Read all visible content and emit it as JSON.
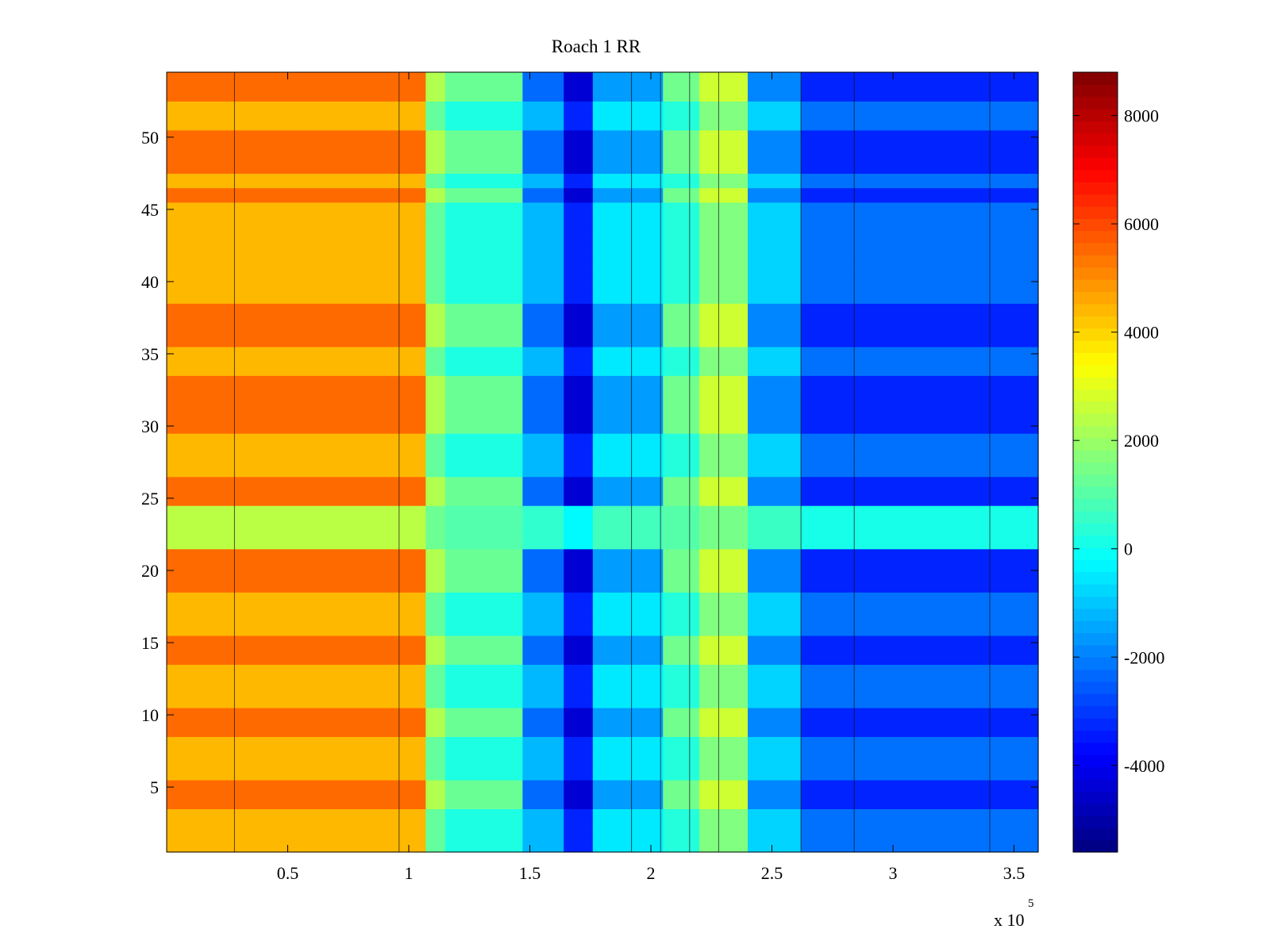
{
  "chart_data": {
    "type": "heatmap",
    "title": "Roach 1 RR",
    "xlabel": "",
    "ylabel": "",
    "x_exponent_label": "x 10",
    "x_exponent": "5",
    "xlim": [
      0,
      3.6
    ],
    "ylim": [
      0.5,
      54.5
    ],
    "x_ticks": [
      {
        "value": 0.5,
        "label": "0.5"
      },
      {
        "value": 1,
        "label": "1"
      },
      {
        "value": 1.5,
        "label": "1.5"
      },
      {
        "value": 2,
        "label": "2"
      },
      {
        "value": 2.5,
        "label": "2.5"
      },
      {
        "value": 3,
        "label": "3"
      },
      {
        "value": 3.5,
        "label": "3.5"
      }
    ],
    "y_ticks": [
      {
        "value": 5,
        "label": "5"
      },
      {
        "value": 10,
        "label": "10"
      },
      {
        "value": 15,
        "label": "15"
      },
      {
        "value": 20,
        "label": "20"
      },
      {
        "value": 25,
        "label": "25"
      },
      {
        "value": 30,
        "label": "30"
      },
      {
        "value": 35,
        "label": "35"
      },
      {
        "value": 40,
        "label": "40"
      },
      {
        "value": 45,
        "label": "45"
      },
      {
        "value": 50,
        "label": "50"
      }
    ],
    "colorbar": {
      "colormap": "jet",
      "clim": [
        -5600,
        8800
      ],
      "ticks": [
        {
          "value": 8000,
          "label": "8000"
        },
        {
          "value": 6000,
          "label": "6000"
        },
        {
          "value": 4000,
          "label": "4000"
        },
        {
          "value": 2000,
          "label": "2000"
        },
        {
          "value": 0,
          "label": "0"
        },
        {
          "value": -2000,
          "label": "-2000"
        },
        {
          "value": -4000,
          "label": "-4000"
        }
      ]
    },
    "rows": 54,
    "x_segments": [
      {
        "x0": 0,
        "x1": 1.07,
        "value": 4400
      },
      {
        "x0": 1.07,
        "x1": 1.15,
        "value": 1200
      },
      {
        "x0": 1.15,
        "x1": 1.47,
        "value": 200
      },
      {
        "x0": 1.47,
        "x1": 1.64,
        "value": -1200
      },
      {
        "x0": 1.64,
        "x1": 1.76,
        "value": -3300
      },
      {
        "x0": 1.76,
        "x1": 2.05,
        "value": -500
      },
      {
        "x0": 2.05,
        "x1": 2.2,
        "value": 300
      },
      {
        "x0": 2.2,
        "x1": 2.4,
        "value": 1600
      },
      {
        "x0": 2.4,
        "x1": 2.62,
        "value": -800
      },
      {
        "x0": 2.62,
        "x1": 3.6,
        "value": -2200
      }
    ],
    "dark_row_bands": [
      [
        3,
        5
      ],
      [
        8,
        10
      ],
      [
        13,
        15
      ],
      [
        18,
        21
      ],
      [
        24,
        26
      ],
      [
        29,
        33
      ],
      [
        35,
        38
      ],
      [
        45,
        46
      ],
      [
        47,
        50
      ],
      [
        52,
        54
      ]
    ],
    "noisy_row_band": [
      21,
      24
    ],
    "vertical_lines": [
      0.28,
      0.96,
      1.92,
      2.04,
      2.16,
      2.28,
      2.62,
      2.84,
      3.4
    ]
  }
}
